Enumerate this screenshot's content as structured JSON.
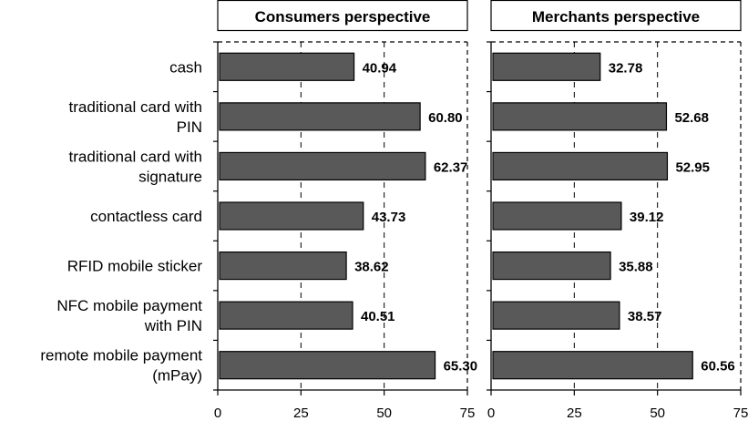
{
  "chart_data": {
    "type": "bar",
    "orientation": "horizontal",
    "categories": [
      [
        "cash"
      ],
      [
        "traditional card with",
        "PIN"
      ],
      [
        "traditional card with",
        "signature"
      ],
      [
        "contactless card"
      ],
      [
        "RFID mobile sticker"
      ],
      [
        "NFC mobile payment",
        "with PIN"
      ],
      [
        "remote mobile payment",
        "(mPay)"
      ]
    ],
    "xlim": [
      0,
      75
    ],
    "xticks": [
      0,
      25,
      50,
      75
    ],
    "grid": "vertical dashed",
    "bar_color": "#595959",
    "panels": [
      {
        "title": "Consumers perspective",
        "values": [
          40.94,
          60.8,
          62.37,
          43.73,
          38.62,
          40.51,
          65.3
        ],
        "value_labels": [
          "40.94",
          "60.80",
          "62.37",
          "43.73",
          "38.62",
          "40.51",
          "65.30"
        ]
      },
      {
        "title": "Merchants  perspective",
        "values": [
          32.78,
          52.68,
          52.95,
          39.12,
          35.88,
          38.57,
          60.56
        ],
        "value_labels": [
          "32.78",
          "52.68",
          "52.95",
          "39.12",
          "35.88",
          "38.57",
          "60.56"
        ]
      }
    ]
  }
}
